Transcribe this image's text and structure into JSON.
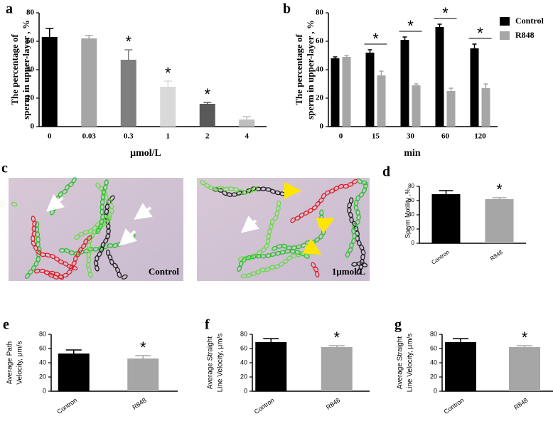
{
  "chart_data": [
    {
      "type": "bar",
      "panel": "a",
      "ylabel": [
        "The percentage of",
        "sperm in upper-layer , %"
      ],
      "xlabel": "μmol/L",
      "categories": [
        "0",
        "0.03",
        "0.3",
        "1",
        "2",
        "4"
      ],
      "values": [
        63,
        62,
        47,
        28,
        16,
        5
      ],
      "errors": [
        6,
        2,
        7,
        4,
        1,
        2
      ],
      "colors": [
        "#000000",
        "#a6a6a6",
        "#7f7f7f",
        "#d9d9d9",
        "#595959",
        "#bfbfbf"
      ],
      "significance": [
        null,
        null,
        "*",
        "*",
        "*",
        null
      ],
      "ylim": [
        0,
        80
      ],
      "yticks": [
        0,
        20,
        40,
        60,
        80
      ]
    },
    {
      "type": "grouped-bar",
      "panel": "b",
      "ylabel": [
        "The percentage of",
        "sperm in upper-layer , %"
      ],
      "xlabel": "min",
      "categories": [
        "0",
        "15",
        "30",
        "60",
        "120"
      ],
      "series": [
        {
          "name": "Control",
          "color": "#000000",
          "values": [
            48,
            52,
            61,
            70,
            55
          ],
          "errors": [
            1,
            2,
            2,
            2,
            3
          ]
        },
        {
          "name": "R848",
          "color": "#a6a6a6",
          "values": [
            49,
            36,
            29,
            25,
            27
          ],
          "errors": [
            1,
            3,
            1,
            2,
            3
          ]
        }
      ],
      "significance": [
        null,
        "*",
        "*",
        "*",
        "*"
      ],
      "legend": "right",
      "ylim": [
        0,
        80
      ],
      "yticks": [
        0,
        20,
        40,
        60,
        80
      ]
    },
    {
      "type": "bar",
      "panel": "d",
      "ylabel": [
        "Sperm Motility ,%"
      ],
      "categories": [
        "Contron",
        "R848"
      ],
      "values": [
        69,
        62
      ],
      "errors": [
        5,
        2
      ],
      "colors": [
        "#000000",
        "#a6a6a6"
      ],
      "significance": [
        null,
        "*"
      ],
      "ylim": [
        0,
        80
      ],
      "yticks": [
        0,
        20,
        40,
        60,
        80
      ]
    },
    {
      "type": "bar",
      "panel": "e",
      "ylabel": [
        "Average Path",
        "Velocity, μm/s"
      ],
      "categories": [
        "Contron",
        "R848"
      ],
      "values": [
        53,
        46
      ],
      "errors": [
        5,
        4
      ],
      "colors": [
        "#000000",
        "#a6a6a6"
      ],
      "significance": [
        null,
        "*"
      ],
      "ylim": [
        0,
        80
      ],
      "yticks": [
        0,
        20,
        40,
        60,
        80
      ]
    },
    {
      "type": "bar",
      "panel": "f",
      "ylabel": [
        "Average Straight",
        "Line Velocity, μm/s"
      ],
      "categories": [
        "Contron",
        "R848"
      ],
      "values": [
        69,
        62
      ],
      "errors": [
        5,
        2
      ],
      "colors": [
        "#000000",
        "#a6a6a6"
      ],
      "significance": [
        null,
        "*"
      ],
      "ylim": [
        0,
        80
      ],
      "yticks": [
        0,
        20,
        40,
        60,
        80
      ]
    },
    {
      "type": "bar",
      "panel": "g",
      "ylabel": [
        "Average Straight",
        "Line Velocity, μm/s"
      ],
      "categories": [
        "Contron",
        "R848"
      ],
      "values": [
        69,
        62
      ],
      "errors": [
        5,
        2
      ],
      "colors": [
        "#000000",
        "#a6a6a6"
      ],
      "significance": [
        null,
        "*"
      ],
      "ylim": [
        0,
        80
      ],
      "yticks": [
        0,
        20,
        40,
        60,
        80
      ]
    }
  ],
  "figure_c": {
    "panel": "c",
    "images": [
      {
        "label": "Control"
      },
      {
        "label": "1μmol/L"
      }
    ]
  }
}
